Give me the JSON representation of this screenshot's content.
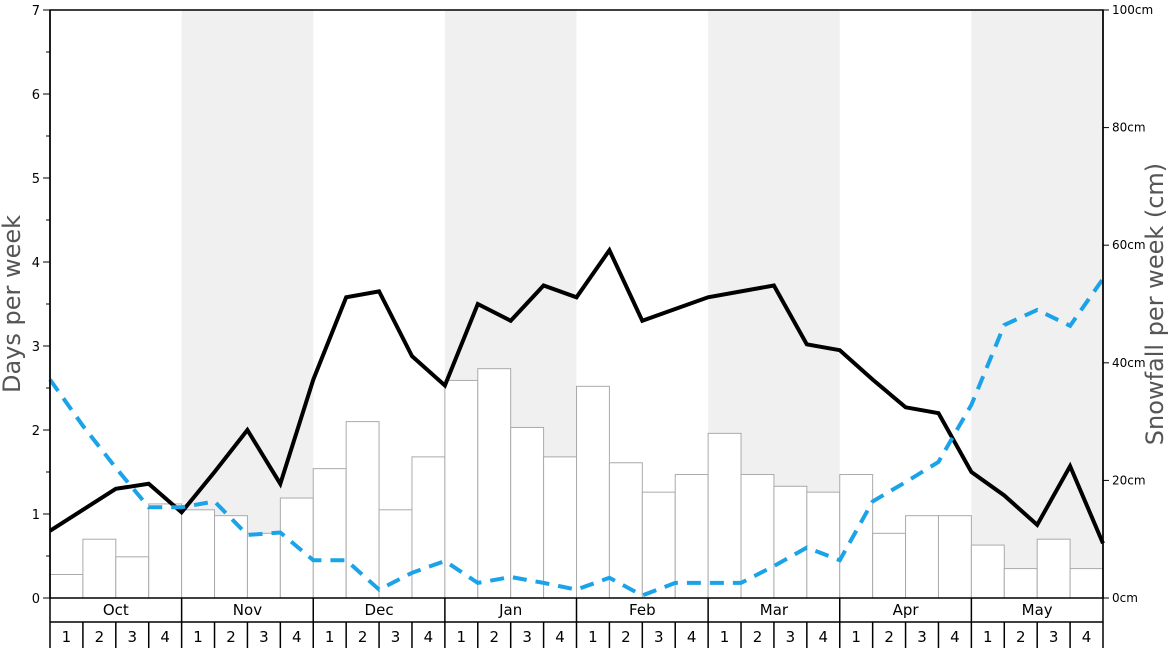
{
  "chart_data": {
    "type": "bar",
    "title": "",
    "ylabel_left": "Days per week",
    "ylabel_right": "Snowfall per week (cm)",
    "ylim_left": [
      0,
      7
    ],
    "ylim_right": [
      0,
      100
    ],
    "left_ticks": [
      "0",
      "1",
      "2",
      "3",
      "4",
      "5",
      "6",
      "7"
    ],
    "right_ticks": [
      "0cm",
      "20cm",
      "40cm",
      "60cm",
      "80cm",
      "100cm"
    ],
    "months": [
      "Oct",
      "Nov",
      "Dec",
      "Jan",
      "Feb",
      "Mar",
      "Apr",
      "May"
    ],
    "weeks": [
      "1",
      "2",
      "3",
      "4"
    ],
    "shaded_months": [
      "Nov",
      "Jan",
      "Mar",
      "May"
    ],
    "colors": {
      "bars": "#ffffff",
      "bar_stroke": "#aaaaaa",
      "snow_days_line": "#000000",
      "other_line": "#1aa3e8",
      "shading": "#f0f0f0"
    },
    "series": [
      {
        "type": "bar",
        "axis": "right",
        "values": [
          4,
          10,
          7,
          16,
          15,
          14,
          11,
          17,
          22,
          30,
          15,
          24,
          37,
          39,
          29,
          24,
          36,
          23,
          18,
          21,
          28,
          21,
          19,
          18,
          21,
          11,
          14,
          14,
          9,
          5,
          10,
          5
        ]
      },
      {
        "type": "line",
        "axis": "left",
        "values": [
          0.8,
          1.05,
          1.3,
          1.36,
          1.02,
          1.5,
          2.0,
          1.36,
          2.6,
          3.58,
          3.65,
          2.88,
          2.53,
          3.5,
          3.3,
          3.72,
          3.58,
          4.14,
          3.3,
          3.44,
          3.58,
          3.65,
          3.72,
          3.02,
          2.95,
          2.6,
          2.27,
          2.2,
          1.5,
          1.22,
          0.87,
          1.57,
          0.65
        ]
      },
      {
        "type": "line",
        "axis": "left",
        "values": [
          2.6,
          2.05,
          1.55,
          1.08,
          1.08,
          1.15,
          0.75,
          0.78,
          0.45,
          0.45,
          0.1,
          0.3,
          0.44,
          0.18,
          0.25,
          0.18,
          0.1,
          0.24,
          0.03,
          0.18,
          0.18,
          0.18,
          0.38,
          0.6,
          0.45,
          1.15,
          1.38,
          1.62,
          2.3,
          3.25,
          3.43,
          3.24,
          3.8
        ]
      }
    ]
  }
}
